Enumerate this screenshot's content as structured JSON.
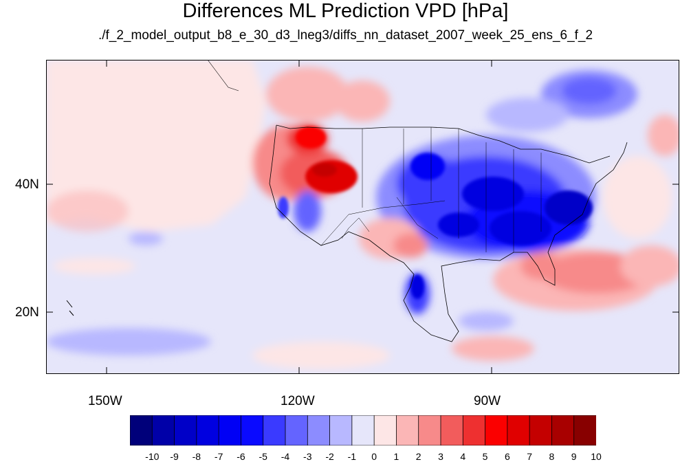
{
  "title": "Differences ML Prediction VPD [hPa]",
  "subtitle": "./f_2_model_output_b8_e_30_d3_lneg3/diffs_nn_dataset_2007_week_25_ens_6_f_2",
  "axes": {
    "lat_labels": [
      "40N",
      "20N"
    ],
    "lon_labels": [
      "150W",
      "120W",
      "90W"
    ]
  },
  "colorbar": {
    "labels": [
      "-10",
      "-9",
      "-8",
      "-7",
      "-6",
      "-5",
      "-4",
      "-3",
      "-2",
      "-1",
      "0",
      "1",
      "2",
      "3",
      "4",
      "5",
      "6",
      "7",
      "8",
      "9",
      "10"
    ],
    "colors": [
      "#00007a",
      "#0000a8",
      "#0000c8",
      "#0000e0",
      "#0000f5",
      "#0a0aff",
      "#3a3aff",
      "#6464ff",
      "#8c8cff",
      "#b8b8ff",
      "#e6e6fa",
      "#fde6e6",
      "#fbb6b6",
      "#f78a8a",
      "#f25c5c",
      "#ee3030",
      "#fb0000",
      "#e00000",
      "#c40000",
      "#a80000",
      "#880000"
    ]
  },
  "map_colors": {
    "ocean_neutral_pos": "#fde6e6",
    "ocean_neutral_neg": "#e6e6fa",
    "strong_neg": "#0a0aff",
    "strong_pos": "#ee3030"
  }
}
